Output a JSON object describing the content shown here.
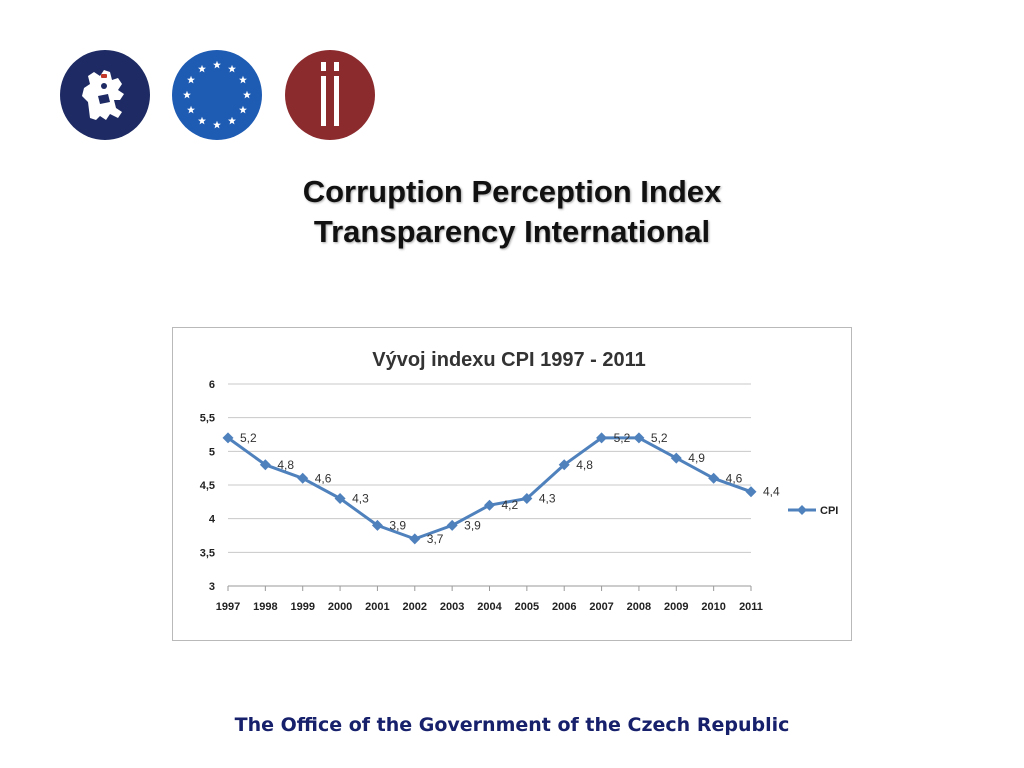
{
  "logos": [
    {
      "name": "czech-lion-emblem",
      "color": "#1d2a63"
    },
    {
      "name": "eu-stars-emblem",
      "color": "#1e5bb3"
    },
    {
      "name": "transparency-international-logo",
      "color": "#8b2b2e"
    }
  ],
  "title": {
    "line1": "Corruption Perception Index",
    "line2": "Transparency International"
  },
  "footer": {
    "text": "The Office of the Government of the Czech Republic",
    "color": "#16206b"
  },
  "chart_data": {
    "type": "line",
    "title": "Vývoj indexu CPI 1997 - 2011",
    "categories": [
      "1997",
      "1998",
      "1999",
      "2000",
      "2001",
      "2002",
      "2003",
      "2004",
      "2005",
      "2006",
      "2007",
      "2008",
      "2009",
      "2010",
      "2011"
    ],
    "series": [
      {
        "name": "CPI",
        "values": [
          5.2,
          4.8,
          4.6,
          4.3,
          3.9,
          3.7,
          3.9,
          4.2,
          4.3,
          4.8,
          5.2,
          5.2,
          4.9,
          4.6,
          4.4
        ],
        "labels": [
          "5,2",
          "4,8",
          "4,6",
          "4,3",
          "3,9",
          "3,7",
          "3,9",
          "4,2",
          "4,3",
          "4,8",
          "5,2",
          "5,2",
          "4,9",
          "4,6",
          "4,4"
        ],
        "color": "#4f81bd"
      }
    ],
    "yticks": [
      "3",
      "3,5",
      "4",
      "4,5",
      "5",
      "5,5",
      "6"
    ],
    "ylim": [
      3,
      6
    ],
    "xlabel": "",
    "ylabel": "",
    "grid": true,
    "legend": "right"
  }
}
